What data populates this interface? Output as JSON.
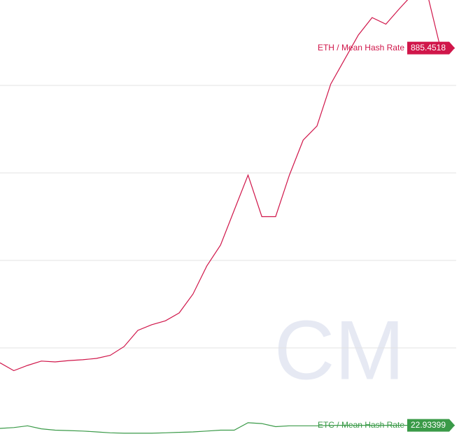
{
  "chart_data": {
    "type": "line",
    "series": [
      {
        "name": "ETH / Mean Hash Rate",
        "color": "#d0164a",
        "values": [
          166,
          148,
          160,
          170,
          168,
          171,
          173,
          176,
          183,
          203,
          240,
          253,
          262,
          280,
          323,
          387,
          435,
          515,
          595,
          500,
          500,
          595,
          675,
          707,
          803,
          859,
          915,
          955,
          940,
          976,
          1010,
          1010,
          880,
          885.4518
        ]
      },
      {
        "name": "ETC / Mean Hash Rate",
        "color": "#3a9a48",
        "values": [
          16,
          18,
          22,
          15,
          12,
          11,
          10,
          8,
          6,
          5,
          5,
          5,
          6,
          7,
          8,
          10,
          12,
          12,
          29,
          27,
          20,
          22,
          22,
          22,
          23,
          23,
          23,
          23,
          23,
          23,
          23,
          23,
          23,
          22.93399
        ]
      }
    ],
    "ylim": [
      -12.8,
      995.2
    ],
    "yticks": [
      200,
      400,
      600,
      800
    ],
    "grid": true
  }
}
